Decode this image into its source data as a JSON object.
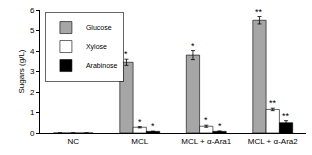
{
  "chart_data": {
    "type": "bar",
    "y_label": "Sugars (g/L)",
    "categories": [
      "NC",
      "MCL",
      "MCL + α-Ara1",
      "MCL + α-Ara2"
    ],
    "series": [
      {
        "name": "Glucose",
        "color": "#a6a6a6",
        "values": [
          0,
          3.45,
          3.8,
          5.5
        ],
        "errors": [
          0,
          0.15,
          0.22,
          0.18
        ]
      },
      {
        "name": "Xylose",
        "color": "#ffffff",
        "values": [
          0,
          0.28,
          0.33,
          1.15
        ],
        "errors": [
          0,
          0.03,
          0.05,
          0.06
        ]
      },
      {
        "name": "Arabinose",
        "color": "#000000",
        "values": [
          0,
          0.08,
          0.08,
          0.5
        ],
        "errors": [
          0,
          0.01,
          0.02,
          0.1
        ]
      }
    ],
    "annotations": [
      {
        "category": "MCL",
        "series": "Glucose",
        "text": "*"
      },
      {
        "category": "MCL",
        "series": "Xylose",
        "text": "*"
      },
      {
        "category": "MCL",
        "series": "Arabinose",
        "text": "*"
      },
      {
        "category": "MCL + α-Ara1",
        "series": "Glucose",
        "text": "*"
      },
      {
        "category": "MCL + α-Ara1",
        "series": "Xylose",
        "text": "*"
      },
      {
        "category": "MCL + α-Ara1",
        "series": "Arabinose",
        "text": "*"
      },
      {
        "category": "MCL + α-Ara2",
        "series": "Glucose",
        "text": "**"
      },
      {
        "category": "MCL + α-Ara2",
        "series": "Xylose",
        "text": "**"
      },
      {
        "category": "MCL + α-Ara2",
        "series": "Arabinose",
        "text": "**"
      }
    ],
    "ylim": [
      0,
      6
    ],
    "yticks": [
      0,
      1,
      2,
      3,
      4,
      5,
      6
    ],
    "grid": false,
    "legend": "top left"
  }
}
